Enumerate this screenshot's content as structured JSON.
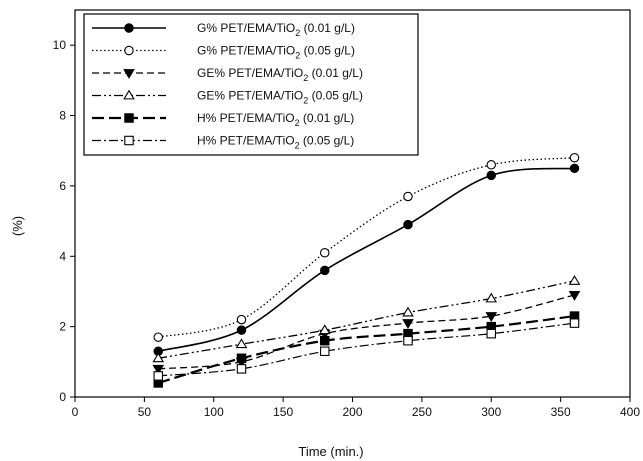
{
  "chart_data": {
    "type": "line",
    "xlabel": "Time (min.)",
    "ylabel": "(%)",
    "xlim": [
      0,
      400
    ],
    "ylim": [
      0,
      11
    ],
    "xticks": [
      0,
      50,
      100,
      150,
      200,
      250,
      300,
      350,
      400
    ],
    "yticks": [
      0,
      2,
      4,
      6,
      8,
      10
    ],
    "grid": false,
    "legend_position": "top-left",
    "x": [
      60,
      120,
      180,
      240,
      300,
      360
    ],
    "series": [
      {
        "name": "G%  PET/EMA/TiO",
        "sub": "2",
        "suffix": " (0.01 g/L)",
        "marker": "circle-filled",
        "dash": "solid",
        "values": [
          1.3,
          1.9,
          3.6,
          4.9,
          6.3,
          6.5
        ]
      },
      {
        "name": "G%  PET/EMA/TiO",
        "sub": "2",
        "suffix": " (0.05 g/L)",
        "marker": "circle-open",
        "dash": "dotted",
        "values": [
          1.7,
          2.2,
          4.1,
          5.7,
          6.6,
          6.8
        ]
      },
      {
        "name": "GE% PET/EMA/TiO",
        "sub": "2",
        "suffix": " (0.01 g/L)",
        "marker": "triangle-down-filled",
        "dash": "dashed",
        "values": [
          0.8,
          1.0,
          1.8,
          2.1,
          2.3,
          2.9
        ]
      },
      {
        "name": "GE% PET/EMA/TiO",
        "sub": "2",
        "suffix": " (0.05 g/L)",
        "marker": "triangle-up-open",
        "dash": "dash-dot-dot",
        "values": [
          1.1,
          1.5,
          1.9,
          2.4,
          2.8,
          3.3
        ]
      },
      {
        "name": "H%  PET/EMA/TiO",
        "sub": "2",
        "suffix": " (0.01 g/L)",
        "marker": "square-filled",
        "dash": "long-dash",
        "values": [
          0.4,
          1.1,
          1.6,
          1.8,
          2.0,
          2.3
        ]
      },
      {
        "name": "H%  PET/EMA/TiO",
        "sub": "2",
        "suffix": " (0.05 g/L)",
        "marker": "square-open",
        "dash": "dash-dot",
        "values": [
          0.6,
          0.8,
          1.3,
          1.6,
          1.8,
          2.1
        ]
      }
    ]
  }
}
